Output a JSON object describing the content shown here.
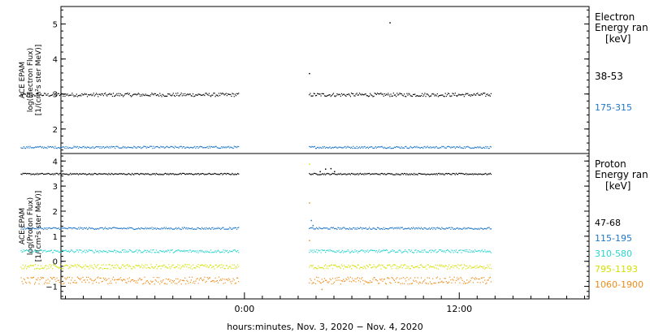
{
  "colors": {
    "black": "#000000",
    "blue": "#1f77c8",
    "cyan": "#2ad4d0",
    "yellow": "#d4e000",
    "orange": "#f08c1a"
  },
  "chart_data": [
    {
      "type": "scatter",
      "panel": "electron",
      "ylabel_lines": [
        "ACE EPAM",
        "log(Electron Flux)",
        "[1/(cm²s ster MeV)]"
      ],
      "ylim": [
        1.3,
        5.5
      ],
      "yticks": [
        2,
        3,
        4,
        5
      ],
      "ytick_labels": [
        "2",
        "3",
        "4",
        "5"
      ],
      "legend_title": [
        "Electron",
        "Energy ran",
        "[keV]"
      ],
      "series": [
        {
          "name": "38-53",
          "color": "#000000",
          "level": 2.99,
          "spread": 0.05,
          "segments": [
            [
              -12.5,
              -0.3
            ],
            [
              3.6,
              13.8
            ]
          ],
          "extra_points": [
            [
              3.6,
              3.6
            ],
            [
              8.1,
              5.05
            ]
          ]
        },
        {
          "name": "175-315",
          "color": "#1f77c8",
          "level": 1.49,
          "spread": 0.03,
          "segments": [
            [
              -12.5,
              -0.3
            ],
            [
              3.6,
              13.8
            ]
          ],
          "extra_points": []
        }
      ]
    },
    {
      "type": "scatter",
      "panel": "proton",
      "ylabel_lines": [
        "ACE EPAM",
        "log(Proton Flux)",
        "[1/(cm²s ster MeV)]"
      ],
      "ylim": [
        -1.5,
        4.3
      ],
      "yticks": [
        -1,
        0,
        1,
        2,
        3,
        4
      ],
      "ytick_labels": [
        "−1",
        "0",
        "1",
        "2",
        "3",
        "4"
      ],
      "legend_title": [
        "Proton",
        "Energy ran",
        "[keV]"
      ],
      "series": [
        {
          "name": "47-68",
          "color": "#000000",
          "level": 3.5,
          "spread": 0.03,
          "segments": [
            [
              -12.5,
              -0.3
            ],
            [
              3.6,
              13.8
            ]
          ],
          "extra_points": [
            [
              4.2,
              3.6
            ],
            [
              4.5,
              3.7
            ],
            [
              4.8,
              3.72
            ],
            [
              5.0,
              3.6
            ]
          ]
        },
        {
          "name": "115-195",
          "color": "#1f77c8",
          "level": 1.33,
          "spread": 0.04,
          "segments": [
            [
              -12.5,
              -0.3
            ],
            [
              3.6,
              13.8
            ]
          ],
          "extra_points": [
            [
              3.7,
              1.65
            ],
            [
              3.8,
              1.45
            ]
          ]
        },
        {
          "name": "310-580",
          "color": "#2ad4d0",
          "level": 0.42,
          "spread": 0.06,
          "segments": [
            [
              -12.5,
              -0.3
            ],
            [
              3.6,
              13.8
            ]
          ],
          "extra_points": []
        },
        {
          "name": "795-1193",
          "color": "#d4e000",
          "level": -0.2,
          "spread": 0.09,
          "segments": [
            [
              -12.5,
              -0.3
            ],
            [
              3.6,
              13.8
            ]
          ],
          "extra_points": [
            [
              3.6,
              3.9
            ]
          ]
        },
        {
          "name": "1060-1900",
          "color": "#f08c1a",
          "level": -0.75,
          "spread": 0.14,
          "segments": [
            [
              -12.5,
              -0.3
            ],
            [
              3.6,
              13.8
            ]
          ],
          "extra_points": [
            [
              3.6,
              2.35
            ],
            [
              3.6,
              0.85
            ],
            [
              4.3,
              -1.1
            ]
          ]
        }
      ]
    }
  ],
  "x_axis": {
    "range_hours": [
      -10.25,
      19.25
    ],
    "major_ticks": [
      0,
      12
    ],
    "major_tick_labels": [
      "0:00",
      "12:00"
    ],
    "minor_tick_step_hours": 1,
    "label": "hours:minutes, Nov.  3, 2020 − Nov.  4, 2020"
  }
}
